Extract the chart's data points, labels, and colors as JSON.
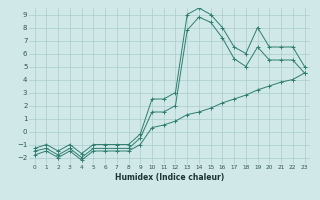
{
  "xlabel": "Humidex (Indice chaleur)",
  "bg_color": "#d0e8e8",
  "grid_color": "#aacccc",
  "line_color": "#2e7d6e",
  "xlim": [
    -0.5,
    23.5
  ],
  "ylim": [
    -2.5,
    9.5
  ],
  "xticks": [
    0,
    1,
    2,
    3,
    4,
    5,
    6,
    7,
    8,
    9,
    10,
    11,
    12,
    13,
    14,
    15,
    16,
    17,
    18,
    19,
    20,
    21,
    22,
    23
  ],
  "yticks": [
    -2,
    -1,
    0,
    1,
    2,
    3,
    4,
    5,
    6,
    7,
    8,
    9
  ],
  "line1_x": [
    0,
    1,
    2,
    3,
    4,
    5,
    6,
    7,
    8,
    9,
    10,
    11,
    12,
    13,
    14,
    15,
    16,
    17,
    18,
    19,
    20,
    21,
    22,
    23
  ],
  "line1_y": [
    -1.5,
    -1.3,
    -1.8,
    -1.3,
    -2.0,
    -1.3,
    -1.3,
    -1.3,
    -1.3,
    -0.5,
    1.5,
    1.5,
    2.0,
    7.8,
    8.8,
    8.4,
    7.2,
    5.6,
    5.0,
    6.5,
    5.5,
    5.5,
    5.5,
    4.5
  ],
  "line2_x": [
    0,
    1,
    2,
    3,
    4,
    5,
    6,
    7,
    8,
    9,
    10,
    11,
    12,
    13,
    14,
    15,
    16,
    17,
    18,
    19,
    20,
    21,
    22,
    23
  ],
  "line2_y": [
    -1.8,
    -1.5,
    -2.0,
    -1.5,
    -2.2,
    -1.5,
    -1.5,
    -1.5,
    -1.5,
    -1.0,
    0.3,
    0.5,
    0.8,
    1.3,
    1.5,
    1.8,
    2.2,
    2.5,
    2.8,
    3.2,
    3.5,
    3.8,
    4.0,
    4.5
  ],
  "line3_x": [
    0,
    1,
    2,
    3,
    4,
    5,
    6,
    7,
    8,
    9,
    10,
    11,
    12,
    13,
    14,
    15,
    16,
    17,
    18,
    19,
    20,
    21,
    22,
    23
  ],
  "line3_y": [
    -1.3,
    -1.0,
    -1.5,
    -1.0,
    -1.7,
    -1.0,
    -1.0,
    -1.0,
    -1.0,
    -0.2,
    2.5,
    2.5,
    3.0,
    9.0,
    9.5,
    9.0,
    8.0,
    6.5,
    6.0,
    8.0,
    6.5,
    6.5,
    6.5,
    5.0
  ]
}
